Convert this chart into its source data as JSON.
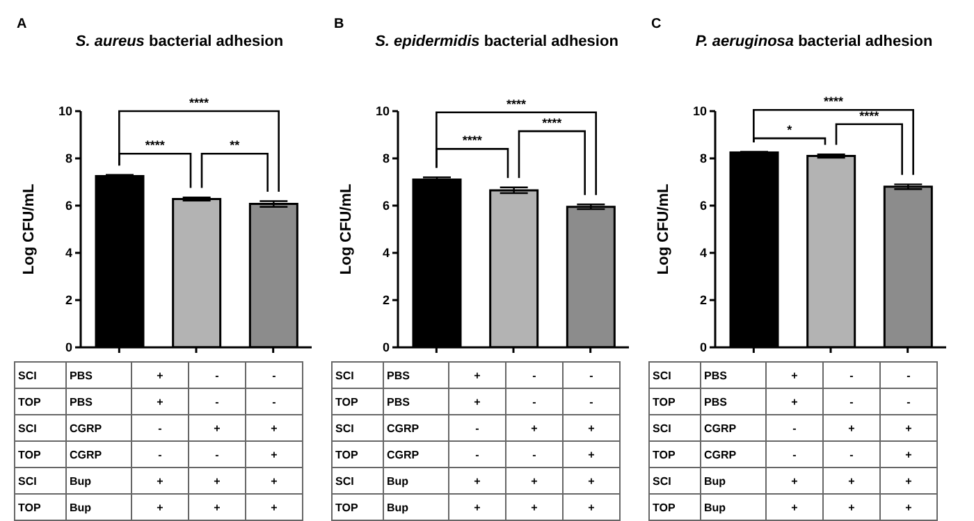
{
  "chart_data": [
    {
      "type": "bar",
      "title": "S. aureus bacterial adhesion",
      "ylabel": "Log CFU/mL",
      "categories": [
        null,
        null,
        null
      ],
      "values": [
        7.25,
        6.28,
        6.07
      ],
      "errors": [
        0.05,
        0.07,
        0.12
      ],
      "colors": [
        "#000000",
        "#b3b3b3",
        "#8c8c8c"
      ],
      "ylim": [
        0,
        10
      ],
      "yticks": [
        0,
        2,
        4,
        6,
        8,
        10
      ],
      "annotations": [
        "A",
        "****",
        "**",
        "****",
        "SCI PBS + - -",
        "TOP PBS + - -",
        "SCI CGRP - + +",
        "TOP CGRP - - +",
        "SCI Bup + + +",
        "TOP Bup + + +"
      ]
    },
    {
      "type": "bar",
      "title": "S. epidermidis bacterial adhesion",
      "ylabel": "Log CFU/mL",
      "categories": [
        null,
        null,
        null
      ],
      "values": [
        7.1,
        6.65,
        5.95
      ],
      "errors": [
        0.1,
        0.12,
        0.1
      ],
      "colors": [
        "#000000",
        "#b3b3b3",
        "#8c8c8c"
      ],
      "ylim": [
        0,
        10
      ],
      "yticks": [
        0,
        2,
        4,
        6,
        8,
        10
      ],
      "annotations": [
        "B",
        "****",
        "****",
        "****",
        "SCI PBS + - -",
        "TOP PBS + - -",
        "SCI CGRP - + +",
        "TOP CGRP - - +",
        "SCI Bup + + +",
        "TOP Bup + + +"
      ]
    },
    {
      "type": "bar",
      "title": "P. aeruginosa bacterial adhesion",
      "ylabel": "Log CFU/mL",
      "categories": [
        null,
        null,
        null
      ],
      "values": [
        8.25,
        8.1,
        6.8
      ],
      "errors": [
        0.03,
        0.07,
        0.1
      ],
      "colors": [
        "#000000",
        "#b3b3b3",
        "#8c8c8c"
      ],
      "ylim": [
        0,
        10
      ],
      "yticks": [
        0,
        2,
        4,
        6,
        8,
        10
      ],
      "annotations": [
        "C",
        "*",
        "****",
        "****",
        "SCI PBS + - -",
        "TOP PBS + - -",
        "SCI CGRP - + +",
        "TOP CGRP - - +",
        "SCI Bup + + +",
        "TOP Bup + + +"
      ]
    }
  ]
}
